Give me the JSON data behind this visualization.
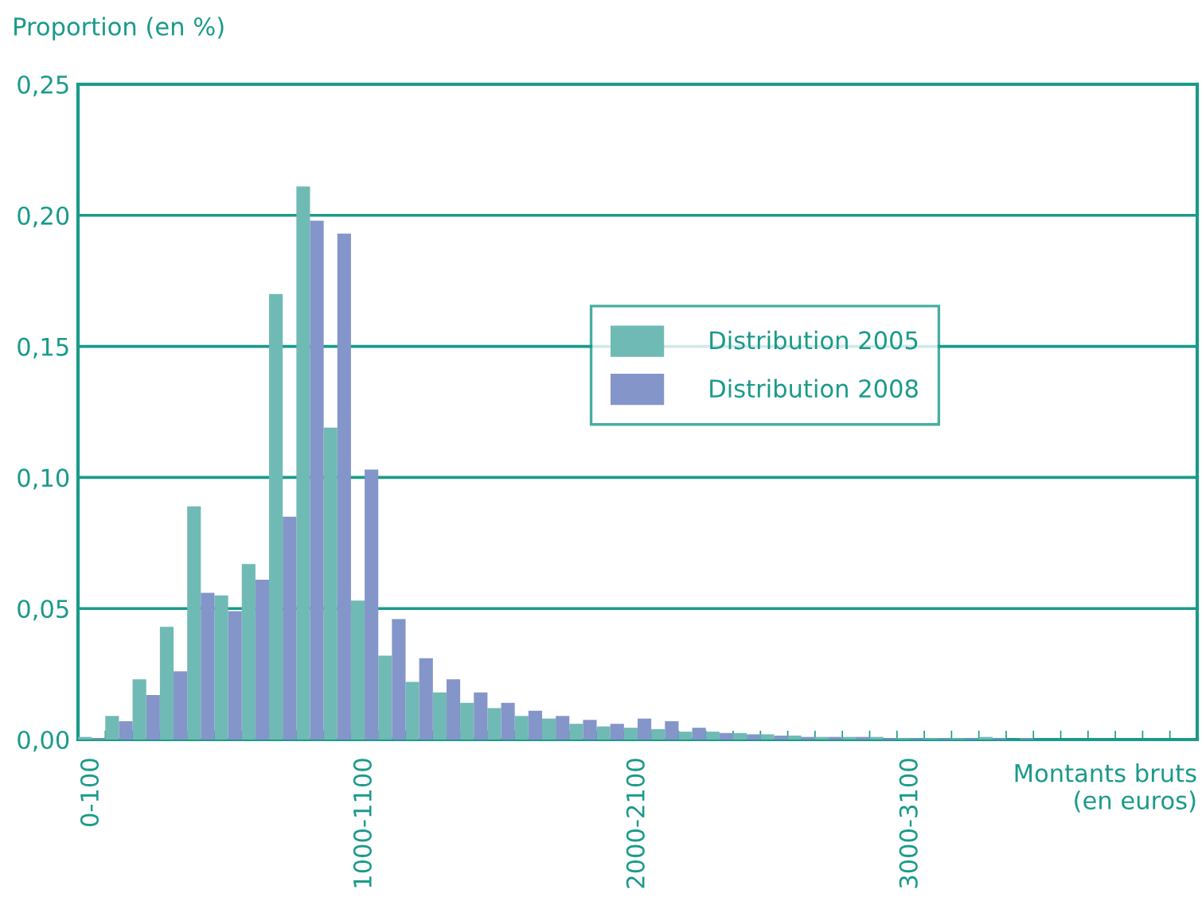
{
  "chart_data": {
    "type": "bar",
    "ylabel": "Proportion (en %)",
    "xlabel": "Montants bruts\n(en euros)",
    "categories": [
      "0-100",
      null,
      null,
      null,
      null,
      null,
      null,
      null,
      null,
      null,
      "1000-1100",
      null,
      null,
      null,
      null,
      null,
      null,
      null,
      null,
      null,
      "2000-2100",
      null,
      null,
      null,
      null,
      null,
      null,
      null,
      null,
      null,
      "3000-3100",
      null,
      null,
      null,
      null,
      null,
      null,
      null,
      null,
      null,
      null
    ],
    "series": [
      {
        "name": "Distribution 2005",
        "color": "#6fbab4",
        "values": [
          0.001,
          0.009,
          0.023,
          0.043,
          0.089,
          0.055,
          0.067,
          0.17,
          0.211,
          0.119,
          0.053,
          0.032,
          0.022,
          0.018,
          0.014,
          0.012,
          0.009,
          0.008,
          0.006,
          0.005,
          0.0045,
          0.004,
          0.003,
          0.003,
          0.0025,
          0.002,
          0.0015,
          0.001,
          0.001,
          0.001,
          0.0005,
          0.0005,
          0.0005,
          0.001,
          0,
          0,
          0,
          0,
          0,
          0,
          0
        ]
      },
      {
        "name": "Distribution 2008",
        "color": "#8495c9",
        "values": [
          0.0005,
          0.007,
          0.017,
          0.026,
          0.056,
          0.049,
          0.061,
          0.085,
          0.198,
          0.193,
          0.103,
          0.046,
          0.031,
          0.023,
          0.018,
          0.014,
          0.011,
          0.009,
          0.0075,
          0.006,
          0.008,
          0.007,
          0.0045,
          0.0025,
          0.002,
          0.0015,
          0.001,
          0.001,
          0.001,
          0.0005,
          0.0005,
          0.0005,
          0.0005,
          0.0005,
          0.0005,
          0,
          0,
          0,
          0,
          0,
          0
        ]
      }
    ],
    "ylim": [
      0,
      0.25
    ],
    "yticks": [
      {
        "value": 0,
        "label": "0,00"
      },
      {
        "value": 0.05,
        "label": "0,05"
      },
      {
        "value": 0.1,
        "label": "0,10"
      },
      {
        "value": 0.15,
        "label": "0,15"
      },
      {
        "value": 0.2,
        "label": "0,20"
      },
      {
        "value": 0.25,
        "label": "0,25"
      }
    ],
    "grid": "y",
    "legend": "top right"
  }
}
